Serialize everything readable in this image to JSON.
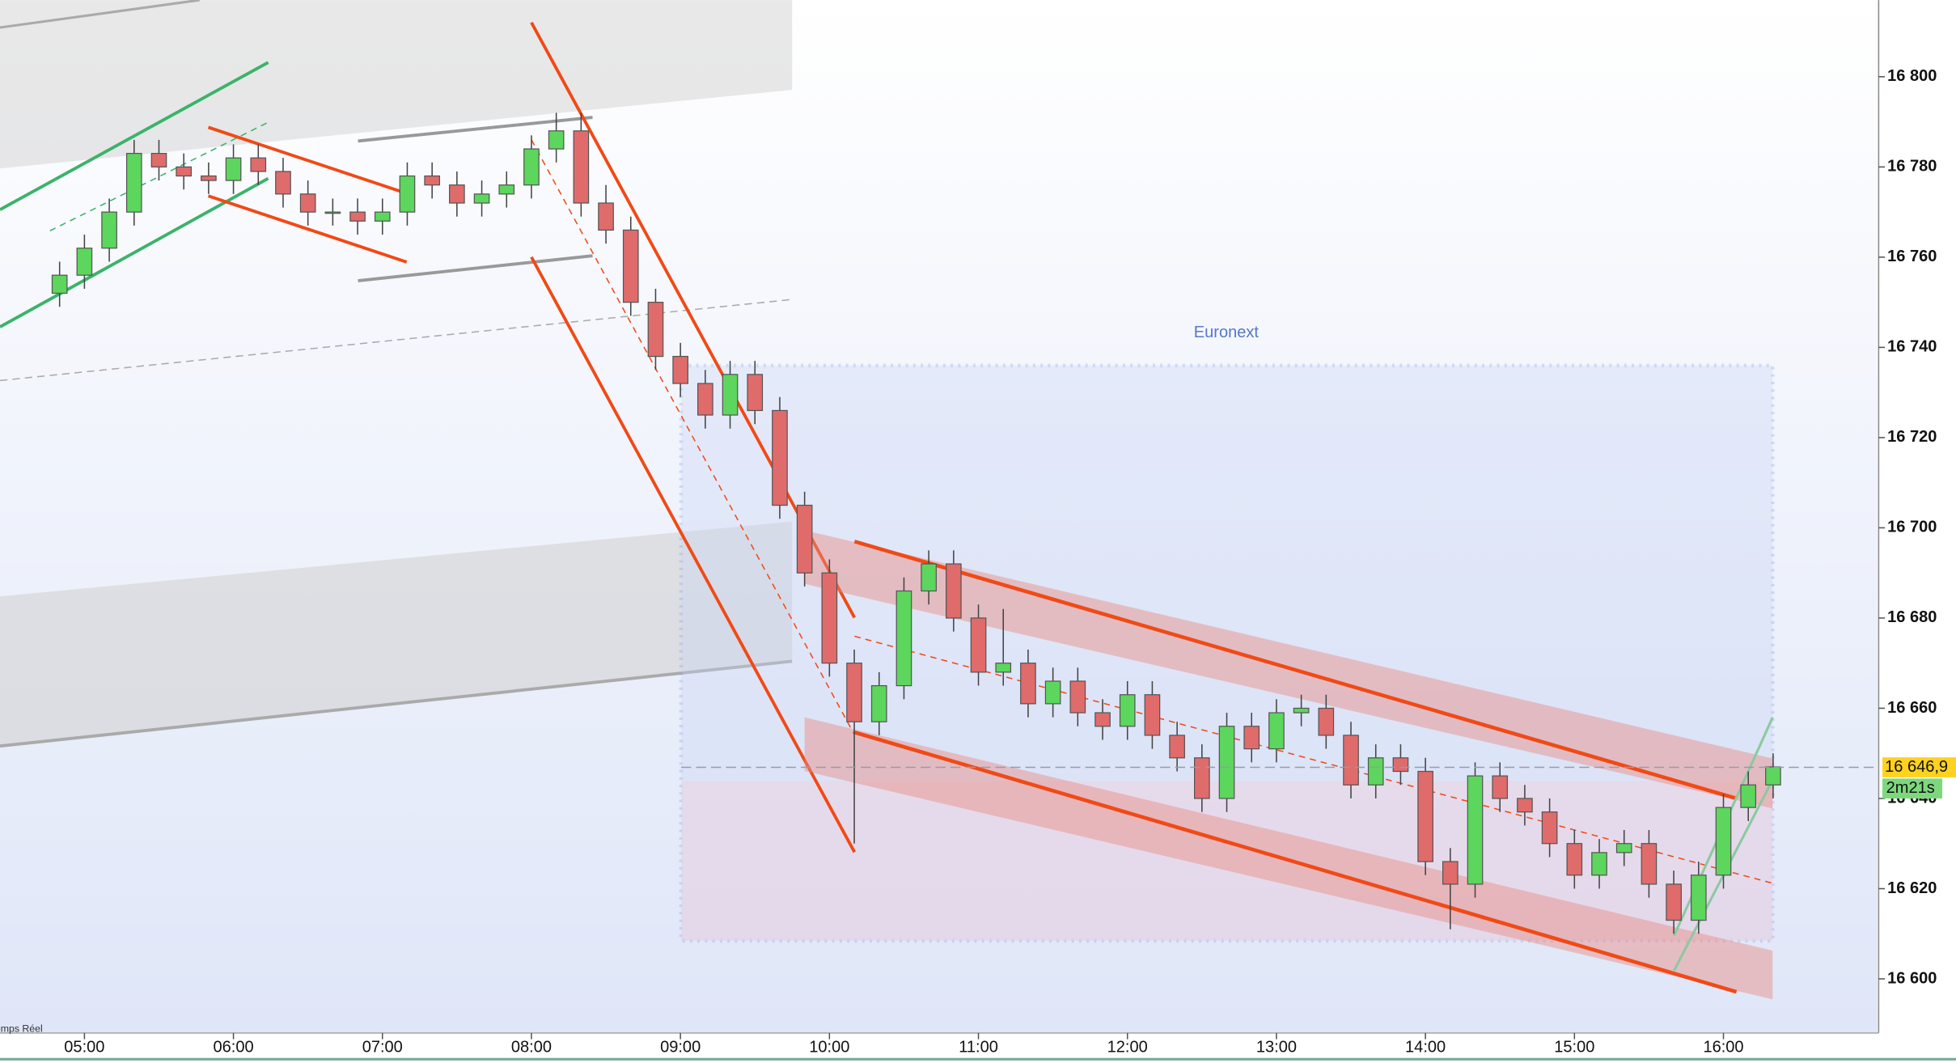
{
  "chart_data": {
    "type": "candlestick",
    "x": [
      290,
      300,
      310,
      320,
      330,
      340,
      350,
      360,
      370,
      380,
      390,
      400,
      410,
      420,
      430,
      440,
      450,
      460,
      470,
      480,
      490,
      500,
      510,
      520,
      530,
      540,
      550,
      560,
      570,
      580,
      590,
      600,
      610,
      620,
      630,
      640,
      650,
      660,
      670,
      680,
      690,
      700,
      710,
      720,
      730,
      740,
      750,
      760,
      770,
      780,
      790,
      800,
      810,
      820,
      830,
      840,
      850,
      860,
      870,
      880,
      890,
      900,
      910,
      920,
      930,
      940,
      950,
      960,
      970,
      980
    ],
    "open": [
      16752,
      16756,
      16762,
      16770,
      16783,
      16780,
      16778,
      16777,
      16782,
      16779,
      16774,
      16770,
      16770,
      16768,
      16770,
      16778,
      16776,
      16772,
      16774,
      16776,
      16784,
      16788,
      16772,
      16766,
      16750,
      16738,
      16732,
      16725,
      16734,
      16726,
      16705,
      16690,
      16670,
      16657,
      16665,
      16686,
      16692,
      16680,
      16668,
      16670,
      16661,
      16666,
      16659,
      16656,
      16663,
      16654,
      16649,
      16640,
      16656,
      16651,
      16659,
      16660,
      16654,
      16643,
      16649,
      16646,
      16626,
      16621,
      16645,
      16640,
      16637,
      16630,
      16623,
      16628,
      16630,
      16621,
      16613,
      16623,
      16638,
      16643
    ],
    "high": [
      16759,
      16765,
      16773,
      16786,
      16786,
      16783,
      16781,
      16785,
      16785,
      16782,
      16777,
      16773,
      16773,
      16773,
      16781,
      16781,
      16779,
      16777,
      16779,
      16787,
      16792,
      16792,
      16776,
      16769,
      16753,
      16741,
      16735,
      16737,
      16737,
      16729,
      16708,
      16693,
      16673,
      16668,
      16689,
      16695,
      16695,
      16683,
      16682,
      16673,
      16669,
      16669,
      16662,
      16666,
      16666,
      16657,
      16652,
      16659,
      16659,
      16662,
      16663,
      16663,
      16657,
      16652,
      16652,
      16649,
      16629,
      16648,
      16648,
      16643,
      16640,
      16633,
      16631,
      16633,
      16633,
      16624,
      16626,
      16641,
      16646,
      16650
    ],
    "low": [
      16749,
      16753,
      16759,
      16767,
      16777,
      16775,
      16774,
      16774,
      16776,
      16771,
      16767,
      16767,
      16765,
      16765,
      16767,
      16773,
      16769,
      16769,
      16771,
      16773,
      16781,
      16769,
      16763,
      16747,
      16735,
      16729,
      16722,
      16722,
      16723,
      16702,
      16687,
      16667,
      16630,
      16654,
      16662,
      16683,
      16677,
      16665,
      16665,
      16658,
      16658,
      16656,
      16653,
      16653,
      16651,
      16646,
      16637,
      16637,
      16648,
      16648,
      16656,
      16651,
      16640,
      16640,
      16643,
      16623,
      16611,
      16618,
      16637,
      16634,
      16627,
      16620,
      16620,
      16625,
      16618,
      16610,
      16610,
      16620,
      16635,
      16640
    ],
    "close": [
      16756,
      16762,
      16770,
      16783,
      16780,
      16778,
      16777,
      16782,
      16779,
      16774,
      16770,
      16770,
      16768,
      16770,
      16778,
      16776,
      16772,
      16774,
      16776,
      16784,
      16788,
      16772,
      16766,
      16750,
      16738,
      16732,
      16725,
      16734,
      16726,
      16705,
      16690,
      16670,
      16657,
      16665,
      16686,
      16692,
      16680,
      16668,
      16670,
      16661,
      16666,
      16659,
      16656,
      16663,
      16654,
      16649,
      16640,
      16656,
      16651,
      16659,
      16660,
      16654,
      16643,
      16649,
      16646,
      16626,
      16621,
      16645,
      16640,
      16637,
      16630,
      16623,
      16628,
      16630,
      16621,
      16613,
      16623,
      16638,
      16643,
      16647
    ],
    "up_color": "#5cd65c",
    "down_color": "#e06b6b",
    "xlim": [
      266,
      1022
    ],
    "ylim": [
      16588,
      16817
    ],
    "xticks": [
      {
        "value": 300,
        "label": "05:00"
      },
      {
        "value": 360,
        "label": "06:00"
      },
      {
        "value": 420,
        "label": "07:00"
      },
      {
        "value": 480,
        "label": "08:00"
      },
      {
        "value": 540,
        "label": "09:00"
      },
      {
        "value": 600,
        "label": "10:00"
      },
      {
        "value": 660,
        "label": "11:00"
      },
      {
        "value": 720,
        "label": "12:00"
      },
      {
        "value": 780,
        "label": "13:00"
      },
      {
        "value": 840,
        "label": "14:00"
      },
      {
        "value": 900,
        "label": "15:00"
      },
      {
        "value": 960,
        "label": "16:00"
      }
    ],
    "yticks": [
      {
        "value": 16600,
        "label": "16 600"
      },
      {
        "value": 16620,
        "label": "16 620"
      },
      {
        "value": 16640,
        "label": "16 640"
      },
      {
        "value": 16660,
        "label": "16 660"
      },
      {
        "value": 16680,
        "label": "16 680"
      },
      {
        "value": 16700,
        "label": "16 700"
      },
      {
        "value": 16720,
        "label": "16 720"
      },
      {
        "value": 16740,
        "label": "16 740"
      },
      {
        "value": 16760,
        "label": "16 760"
      },
      {
        "value": 16780,
        "label": "16 780"
      },
      {
        "value": 16800,
        "label": "16 800"
      }
    ],
    "annotation": "Euronext",
    "last_price": {
      "value": 16646.9,
      "label": "16 646,9"
    },
    "countdown": "2m21s",
    "source_label": "Temps Réel"
  }
}
